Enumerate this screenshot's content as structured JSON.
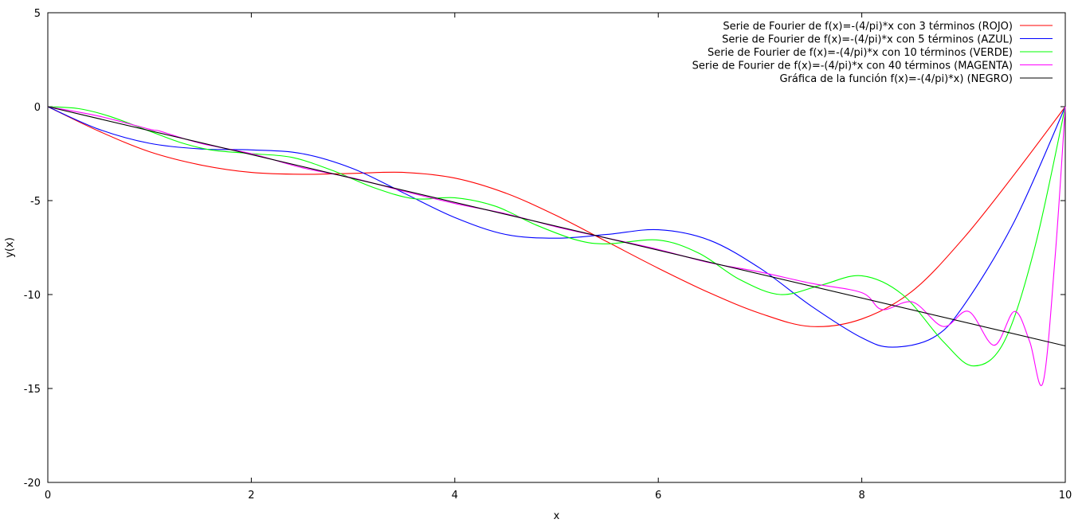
{
  "chart_data": {
    "type": "line",
    "title": "",
    "xlabel": "x",
    "ylabel": "y(x)",
    "xlim": [
      0,
      10
    ],
    "ylim": [
      -20,
      5
    ],
    "grid": false,
    "legend_position": "top-right",
    "x_ticks": [
      {
        "value": 0,
        "label": "0"
      },
      {
        "value": 2,
        "label": "2"
      },
      {
        "value": 4,
        "label": "4"
      },
      {
        "value": 6,
        "label": "6"
      },
      {
        "value": 8,
        "label": "8"
      },
      {
        "value": 10,
        "label": "10"
      }
    ],
    "y_ticks": [
      {
        "value": 5,
        "label": "5"
      },
      {
        "value": 0,
        "label": "0"
      },
      {
        "value": -5,
        "label": "-5"
      },
      {
        "value": -10,
        "label": "-10"
      },
      {
        "value": -15,
        "label": "-15"
      },
      {
        "value": -20,
        "label": "-20"
      }
    ],
    "series": [
      {
        "name": "Serie de Fourier de f(x)=-(4/pi)*x con 3 términos (ROJO)",
        "color": "#ff0000",
        "x": [
          0,
          0.5,
          1,
          1.5,
          2,
          2.5,
          3,
          3.5,
          4,
          4.5,
          5,
          5.5,
          6,
          6.5,
          7,
          7.5,
          8,
          8.5,
          9,
          9.5,
          10
        ],
        "y": [
          0,
          -1.3,
          -2.4,
          -3.1,
          -3.5,
          -3.6,
          -3.55,
          -3.5,
          -3.8,
          -4.6,
          -5.8,
          -7.2,
          -8.6,
          -9.9,
          -11,
          -11.7,
          -11.3,
          -9.8,
          -7.0,
          -3.6,
          0
        ]
      },
      {
        "name": "Serie de Fourier de f(x)=-(4/pi)*x con 5 términos (AZUL)",
        "color": "#0000ff",
        "x": [
          0,
          0.5,
          1,
          1.5,
          2,
          2.5,
          3,
          3.5,
          4,
          4.5,
          5,
          5.5,
          6,
          6.5,
          7,
          7.5,
          8,
          8.3,
          8.7,
          9,
          9.5,
          10
        ],
        "y": [
          0,
          -1.2,
          -1.95,
          -2.25,
          -2.3,
          -2.5,
          -3.3,
          -4.6,
          -5.9,
          -6.8,
          -7.0,
          -6.8,
          -6.55,
          -7.1,
          -8.6,
          -10.6,
          -12.3,
          -12.8,
          -12.3,
          -10.6,
          -6.1,
          0
        ]
      },
      {
        "name": "Serie de Fourier de f(x)=-(4/pi)*x con 10 términos (VERDE)",
        "color": "#00ff00",
        "x": [
          0,
          0.3,
          0.6,
          1,
          1.3,
          1.6,
          2,
          2.4,
          2.8,
          3.2,
          3.6,
          4,
          4.4,
          4.8,
          5.2,
          5.5,
          6,
          6.4,
          6.8,
          7.2,
          7.6,
          8,
          8.4,
          8.8,
          9.1,
          9.4,
          9.7,
          10
        ],
        "y": [
          0,
          -0.1,
          -0.5,
          -1.3,
          -1.9,
          -2.3,
          -2.5,
          -2.7,
          -3.4,
          -4.3,
          -4.9,
          -4.85,
          -5.3,
          -6.3,
          -7.1,
          -7.3,
          -7.1,
          -7.8,
          -9.2,
          -10.0,
          -9.5,
          -9.0,
          -10.0,
          -12.5,
          -13.8,
          -12.5,
          -7.5,
          0
        ]
      },
      {
        "name": "Serie de Fourier de f(x)=-(4/pi)*x con 40 términos (MAGENTA)",
        "color": "#ff00ff",
        "x": [
          0,
          0.5,
          1,
          1.1,
          1.5,
          2,
          2.5,
          3,
          3.5,
          4,
          4.5,
          5,
          5.5,
          6,
          6.5,
          7,
          7.5,
          8,
          8.2,
          8.5,
          8.8,
          9.05,
          9.3,
          9.5,
          9.65,
          9.78,
          9.9,
          10
        ],
        "y": [
          0,
          -0.5,
          -1.2,
          -1.3,
          -1.95,
          -2.5,
          -3.25,
          -3.8,
          -4.5,
          -5.15,
          -5.7,
          -6.4,
          -7.0,
          -7.6,
          -8.3,
          -8.8,
          -9.4,
          -9.9,
          -10.8,
          -10.4,
          -11.7,
          -10.9,
          -12.7,
          -10.9,
          -12.5,
          -14.7,
          -8.0,
          0
        ]
      },
      {
        "name": "Gráfica de la función f(x)=-(4/pi)*x) (NEGRO)",
        "color": "#000000",
        "x": [
          0,
          10
        ],
        "y": [
          0,
          -12.732
        ]
      }
    ]
  }
}
